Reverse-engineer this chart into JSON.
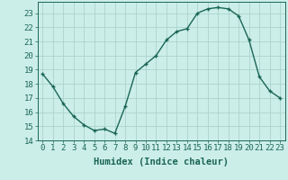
{
  "x": [
    0,
    1,
    2,
    3,
    4,
    5,
    6,
    7,
    8,
    9,
    10,
    11,
    12,
    13,
    14,
    15,
    16,
    17,
    18,
    19,
    20,
    21,
    22,
    23
  ],
  "y": [
    18.7,
    17.8,
    16.6,
    15.7,
    15.1,
    14.7,
    14.8,
    14.5,
    16.4,
    18.8,
    19.4,
    20.0,
    21.1,
    21.7,
    21.9,
    23.0,
    23.3,
    23.4,
    23.3,
    22.8,
    21.1,
    18.5,
    17.5,
    17.0
  ],
  "line_color": "#1a6655",
  "marker_color": "#1a6655",
  "bg_color": "#cceee8",
  "grid_color": "#aad4cc",
  "xlabel": "Humidex (Indice chaleur)",
  "ylim": [
    14,
    23.8
  ],
  "xlim": [
    -0.5,
    23.5
  ],
  "yticks": [
    14,
    15,
    16,
    17,
    18,
    19,
    20,
    21,
    22,
    23
  ],
  "xticks": [
    0,
    1,
    2,
    3,
    4,
    5,
    6,
    7,
    8,
    9,
    10,
    11,
    12,
    13,
    14,
    15,
    16,
    17,
    18,
    19,
    20,
    21,
    22,
    23
  ],
  "title_color": "#1a6655",
  "xlabel_fontsize": 7.5,
  "tick_fontsize": 6.5
}
